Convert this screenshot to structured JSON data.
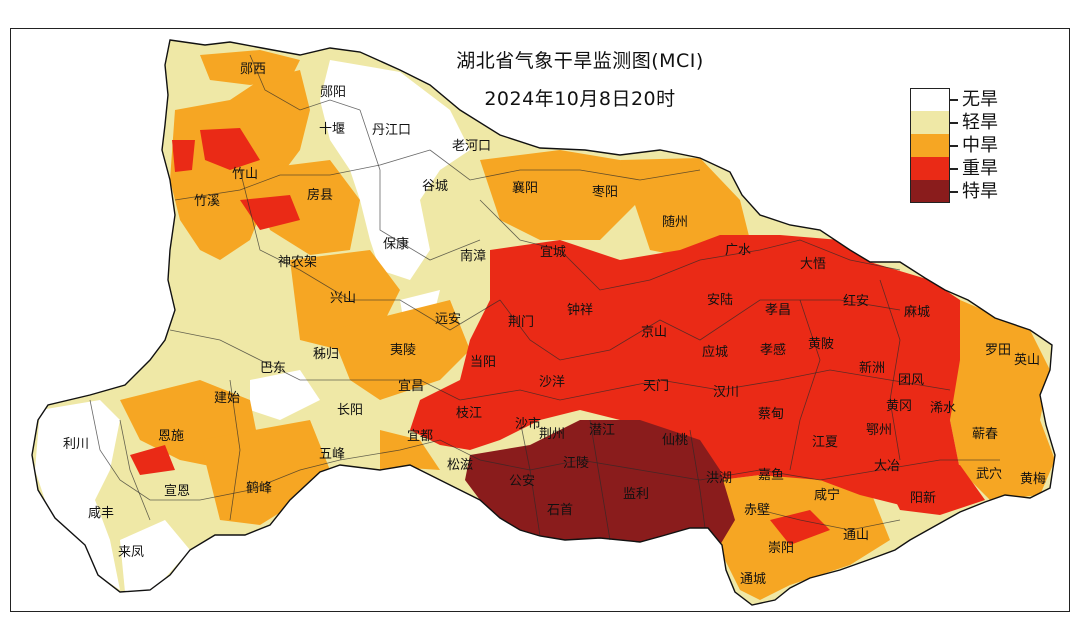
{
  "title": {
    "line1": "湖北省气象干旱监测图(MCI)",
    "line2": "2024年10月8日20时"
  },
  "legend": [
    {
      "label": "无旱",
      "color": "#ffffff"
    },
    {
      "label": "轻旱",
      "color": "#efe8a6"
    },
    {
      "label": "中旱",
      "color": "#f6a623"
    },
    {
      "label": "重旱",
      "color": "#ea2a16"
    },
    {
      "label": "特旱",
      "color": "#8a1c1c"
    }
  ],
  "regions": [
    {
      "name": "郧西",
      "level": "中旱"
    },
    {
      "name": "郧阳",
      "level": "轻旱"
    },
    {
      "name": "十堰",
      "level": "轻旱"
    },
    {
      "name": "丹江口",
      "level": "无旱"
    },
    {
      "name": "老河口",
      "level": "无旱"
    },
    {
      "name": "竹山",
      "level": "中旱"
    },
    {
      "name": "竹溪",
      "level": "中旱"
    },
    {
      "name": "房县",
      "level": "中旱"
    },
    {
      "name": "谷城",
      "level": "无旱"
    },
    {
      "name": "襄阳",
      "level": "中旱"
    },
    {
      "name": "枣阳",
      "level": "中旱"
    },
    {
      "name": "随州",
      "level": "中旱"
    },
    {
      "name": "保康",
      "level": "无旱"
    },
    {
      "name": "南漳",
      "level": "轻旱"
    },
    {
      "name": "宜城",
      "level": "重旱"
    },
    {
      "name": "广水",
      "level": "重旱"
    },
    {
      "name": "大悟",
      "level": "重旱"
    },
    {
      "name": "神农架",
      "level": "轻旱"
    },
    {
      "name": "兴山",
      "level": "中旱"
    },
    {
      "name": "钟祥",
      "level": "重旱"
    },
    {
      "name": "安陆",
      "level": "重旱"
    },
    {
      "name": "孝昌",
      "level": "重旱"
    },
    {
      "name": "红安",
      "level": "重旱"
    },
    {
      "name": "麻城",
      "level": "重旱"
    },
    {
      "name": "远安",
      "level": "中旱"
    },
    {
      "name": "荆门",
      "level": "重旱"
    },
    {
      "name": "京山",
      "level": "重旱"
    },
    {
      "name": "应城",
      "level": "重旱"
    },
    {
      "name": "孝感",
      "level": "重旱"
    },
    {
      "name": "黄陂",
      "level": "重旱"
    },
    {
      "name": "罗田",
      "level": "中旱"
    },
    {
      "name": "英山",
      "level": "中旱"
    },
    {
      "name": "秭归",
      "level": "中旱"
    },
    {
      "name": "夷陵",
      "level": "中旱"
    },
    {
      "name": "当阳",
      "level": "中旱"
    },
    {
      "name": "新洲",
      "level": "重旱"
    },
    {
      "name": "团风",
      "level": "重旱"
    },
    {
      "name": "巴东",
      "level": "轻旱"
    },
    {
      "name": "沙洋",
      "level": "重旱"
    },
    {
      "name": "天门",
      "level": "重旱"
    },
    {
      "name": "汉川",
      "level": "重旱"
    },
    {
      "name": "宜昌",
      "level": "中旱"
    },
    {
      "name": "建始",
      "level": "中旱"
    },
    {
      "name": "长阳",
      "level": "轻旱"
    },
    {
      "name": "枝江",
      "level": "重旱"
    },
    {
      "name": "蔡甸",
      "level": "重旱"
    },
    {
      "name": "黄冈",
      "level": "重旱"
    },
    {
      "name": "浠水",
      "level": "重旱"
    },
    {
      "name": "利川",
      "level": "无旱"
    },
    {
      "name": "恩施",
      "level": "中旱"
    },
    {
      "name": "宜都",
      "level": "中旱"
    },
    {
      "name": "沙市",
      "level": "特旱"
    },
    {
      "name": "荆州",
      "level": "特旱"
    },
    {
      "name": "潜江",
      "level": "特旱"
    },
    {
      "name": "仙桃",
      "level": "特旱"
    },
    {
      "name": "江夏",
      "level": "重旱"
    },
    {
      "name": "鄂州",
      "level": "重旱"
    },
    {
      "name": "蕲春",
      "level": "中旱"
    },
    {
      "name": "五峰",
      "level": "轻旱"
    },
    {
      "name": "松滋",
      "level": "重旱"
    },
    {
      "name": "江陵",
      "level": "特旱"
    },
    {
      "name": "洪湖",
      "level": "特旱"
    },
    {
      "name": "嘉鱼",
      "level": "重旱"
    },
    {
      "name": "大冶",
      "level": "重旱"
    },
    {
      "name": "武穴",
      "level": "重旱"
    },
    {
      "name": "黄梅",
      "level": "中旱"
    },
    {
      "name": "宣恩",
      "level": "中旱"
    },
    {
      "name": "鹤峰",
      "level": "中旱"
    },
    {
      "name": "公安",
      "level": "特旱"
    },
    {
      "name": "监利",
      "level": "特旱"
    },
    {
      "name": "咸宁",
      "level": "中旱"
    },
    {
      "name": "阳新",
      "level": "重旱"
    },
    {
      "name": "咸丰",
      "level": "轻旱"
    },
    {
      "name": "石首",
      "level": "特旱"
    },
    {
      "name": "赤壁",
      "level": "中旱"
    },
    {
      "name": "通山",
      "level": "中旱"
    },
    {
      "name": "崇阳",
      "level": "中旱"
    },
    {
      "name": "来凤",
      "level": "无旱"
    },
    {
      "name": "通城",
      "level": "中旱"
    }
  ]
}
